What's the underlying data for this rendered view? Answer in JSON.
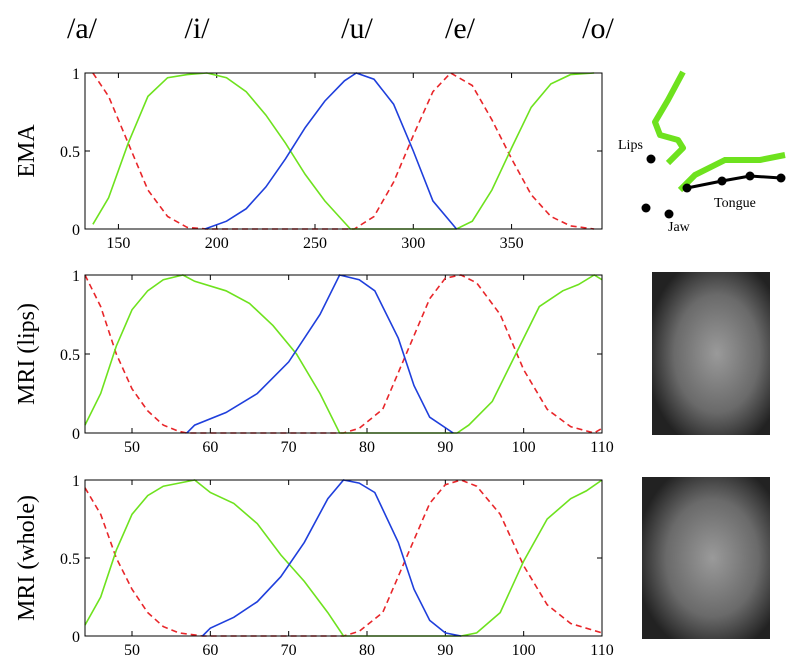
{
  "labels": [
    "/a/",
    "/i/",
    "/u/",
    "/e/",
    "/o/"
  ],
  "diagram": {
    "labels": [
      "Lips",
      "Tongue",
      "Jaw"
    ]
  },
  "chart_data": [
    {
      "type": "line",
      "y_label": "EMA",
      "xlim": [
        133,
        396
      ],
      "xticks": [
        150,
        200,
        250,
        300,
        350
      ],
      "ylim": [
        0,
        1
      ],
      "yticks": [
        0,
        0.5,
        1
      ],
      "series": [
        {
          "color": "#e8262a",
          "dash": true,
          "x": [
            137,
            145,
            155,
            165,
            175,
            185,
            195,
            270,
            280,
            290,
            300,
            310,
            319,
            330,
            340,
            350,
            360,
            370,
            380,
            392
          ],
          "values": [
            1,
            0.85,
            0.55,
            0.25,
            0.08,
            0.01,
            0,
            0,
            0.08,
            0.3,
            0.6,
            0.88,
            1,
            0.92,
            0.7,
            0.45,
            0.22,
            0.08,
            0.02,
            0
          ]
        },
        {
          "color": "#6ee21e",
          "dash": false,
          "x": [
            137,
            145,
            155,
            165,
            175,
            185,
            195,
            205,
            215,
            225,
            235,
            245,
            255,
            268,
            322,
            330,
            340,
            350,
            360,
            370,
            380,
            392
          ],
          "values": [
            0.03,
            0.2,
            0.55,
            0.85,
            0.97,
            0.99,
            1,
            0.97,
            0.88,
            0.73,
            0.55,
            0.35,
            0.18,
            0,
            0,
            0.05,
            0.25,
            0.52,
            0.78,
            0.93,
            0.99,
            1
          ]
        },
        {
          "color": "#1f3fdc",
          "dash": false,
          "x": [
            194,
            205,
            215,
            225,
            235,
            245,
            255,
            265,
            271,
            280,
            290,
            300,
            310,
            322
          ],
          "values": [
            0,
            0.05,
            0.13,
            0.27,
            0.45,
            0.65,
            0.82,
            0.95,
            1,
            0.96,
            0.8,
            0.5,
            0.18,
            0
          ]
        }
      ]
    },
    {
      "type": "line",
      "y_label": "MRI (lips)",
      "xlim": [
        44,
        110
      ],
      "xticks": [
        50,
        60,
        70,
        80,
        90,
        100,
        110
      ],
      "ylim": [
        0,
        1
      ],
      "yticks": [
        0,
        0.5,
        1
      ],
      "series": [
        {
          "color": "#e8262a",
          "dash": true,
          "x": [
            44,
            46,
            48,
            50,
            52,
            54,
            56,
            57,
            77,
            79,
            82,
            85,
            88,
            90,
            92,
            94,
            97,
            100,
            103,
            106,
            109,
            110
          ],
          "values": [
            1,
            0.8,
            0.5,
            0.28,
            0.14,
            0.05,
            0.01,
            0,
            0,
            0.03,
            0.15,
            0.5,
            0.85,
            0.98,
            1,
            0.95,
            0.75,
            0.4,
            0.15,
            0.04,
            0,
            0.03
          ]
        },
        {
          "color": "#6ee21e",
          "dash": false,
          "x": [
            44,
            46,
            48,
            50,
            52,
            54,
            56.5,
            58,
            62,
            65,
            68,
            71,
            74,
            76.5,
            91.5,
            93,
            96,
            99,
            102,
            105,
            107,
            109,
            110
          ],
          "values": [
            0.05,
            0.25,
            0.55,
            0.78,
            0.9,
            0.97,
            1,
            0.96,
            0.9,
            0.82,
            0.68,
            0.5,
            0.25,
            0,
            0,
            0.05,
            0.2,
            0.5,
            0.8,
            0.9,
            0.94,
            1,
            0.97
          ]
        },
        {
          "color": "#1f3fdc",
          "dash": false,
          "x": [
            57,
            58,
            62,
            66,
            70,
            74,
            76.5,
            79,
            81,
            84,
            86,
            88,
            91
          ],
          "values": [
            0,
            0.05,
            0.13,
            0.25,
            0.45,
            0.75,
            1,
            0.97,
            0.9,
            0.6,
            0.3,
            0.1,
            0
          ]
        }
      ]
    },
    {
      "type": "line",
      "y_label": "MRI (whole)",
      "xlim": [
        44,
        110
      ],
      "xticks": [
        50,
        60,
        70,
        80,
        90,
        100,
        110
      ],
      "ylim": [
        0,
        1
      ],
      "yticks": [
        0,
        0.5,
        1
      ],
      "series": [
        {
          "color": "#e8262a",
          "dash": true,
          "x": [
            44,
            46,
            48,
            50,
            52,
            54,
            56,
            59,
            77,
            79,
            82,
            85,
            88,
            90,
            92,
            94,
            97,
            100,
            103,
            106,
            110
          ],
          "values": [
            0.95,
            0.78,
            0.5,
            0.3,
            0.15,
            0.06,
            0.02,
            0,
            0,
            0.03,
            0.15,
            0.5,
            0.85,
            0.97,
            1,
            0.96,
            0.78,
            0.45,
            0.2,
            0.08,
            0.02
          ]
        },
        {
          "color": "#6ee21e",
          "dash": false,
          "x": [
            44,
            46,
            48,
            50,
            52,
            54,
            56,
            58,
            60,
            63,
            66,
            69,
            72,
            75,
            77,
            92,
            94,
            97,
            100,
            103,
            106,
            108,
            110
          ],
          "values": [
            0.07,
            0.25,
            0.55,
            0.78,
            0.9,
            0.96,
            0.98,
            1,
            0.92,
            0.85,
            0.72,
            0.52,
            0.35,
            0.15,
            0,
            0,
            0.02,
            0.15,
            0.48,
            0.75,
            0.88,
            0.93,
            1
          ]
        },
        {
          "color": "#1f3fdc",
          "dash": false,
          "x": [
            59,
            60,
            63,
            66,
            69,
            72,
            75,
            77,
            79,
            81,
            84,
            86,
            88,
            90,
            92
          ],
          "values": [
            0,
            0.05,
            0.12,
            0.22,
            0.38,
            0.6,
            0.88,
            1,
            0.98,
            0.92,
            0.6,
            0.3,
            0.1,
            0.02,
            0
          ]
        }
      ]
    }
  ]
}
